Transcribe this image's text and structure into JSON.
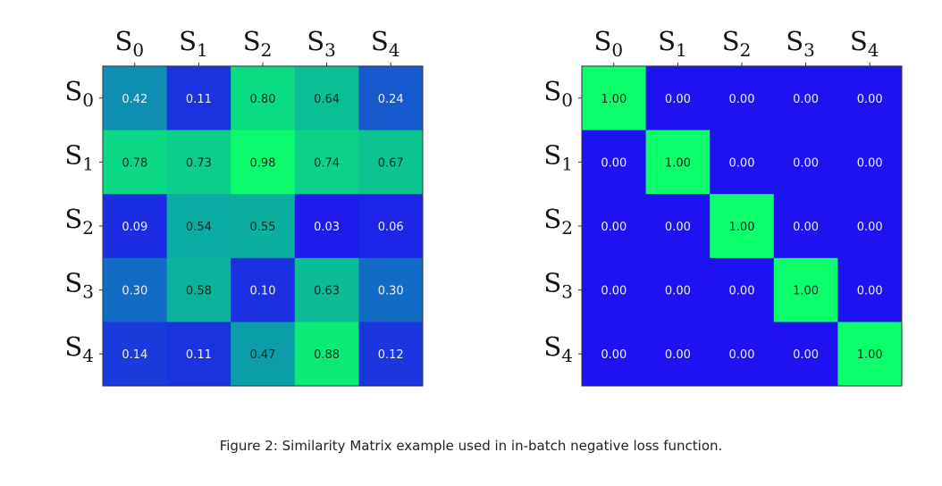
{
  "caption": "Figure 2: Similarity Matrix example used in in-batch negative loss function.",
  "colormap": {
    "low": "#1f12f0",
    "mid": "#0aa6a6",
    "high": "#0cff6a"
  },
  "chart_data": [
    {
      "type": "heatmap",
      "x_tick_labels": [
        {
          "base": "S",
          "sub": "0"
        },
        {
          "base": "S",
          "sub": "1"
        },
        {
          "base": "S",
          "sub": "2"
        },
        {
          "base": "S",
          "sub": "3"
        },
        {
          "base": "S",
          "sub": "4"
        }
      ],
      "y_tick_labels": [
        {
          "base": "S",
          "sub": "0"
        },
        {
          "base": "S",
          "sub": "1"
        },
        {
          "base": "S",
          "sub": "2"
        },
        {
          "base": "S",
          "sub": "3"
        },
        {
          "base": "S",
          "sub": "4"
        }
      ],
      "values": [
        [
          0.42,
          0.11,
          0.8,
          0.64,
          0.24
        ],
        [
          0.78,
          0.73,
          0.98,
          0.74,
          0.67
        ],
        [
          0.09,
          0.54,
          0.55,
          0.03,
          0.06
        ],
        [
          0.3,
          0.58,
          0.1,
          0.63,
          0.3
        ],
        [
          0.14,
          0.11,
          0.47,
          0.88,
          0.12
        ]
      ],
      "value_format": "0.00",
      "x_axis_position": "top"
    },
    {
      "type": "heatmap",
      "x_tick_labels": [
        {
          "base": "S",
          "sub": "0"
        },
        {
          "base": "S",
          "sub": "1"
        },
        {
          "base": "S",
          "sub": "2"
        },
        {
          "base": "S",
          "sub": "3"
        },
        {
          "base": "S",
          "sub": "4"
        }
      ],
      "y_tick_labels": [
        {
          "base": "S",
          "sub": "0"
        },
        {
          "base": "S",
          "sub": "1"
        },
        {
          "base": "S",
          "sub": "2"
        },
        {
          "base": "S",
          "sub": "3"
        },
        {
          "base": "S",
          "sub": "4"
        }
      ],
      "values": [
        [
          1.0,
          0.0,
          0.0,
          0.0,
          0.0
        ],
        [
          0.0,
          1.0,
          0.0,
          0.0,
          0.0
        ],
        [
          0.0,
          0.0,
          1.0,
          0.0,
          0.0
        ],
        [
          0.0,
          0.0,
          0.0,
          1.0,
          0.0
        ],
        [
          0.0,
          0.0,
          0.0,
          0.0,
          1.0
        ]
      ],
      "value_format": "0.00",
      "x_axis_position": "top"
    }
  ]
}
